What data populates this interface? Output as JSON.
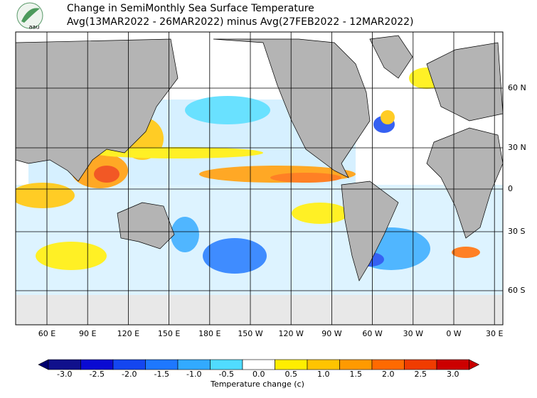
{
  "header": {
    "logo_text": "aau",
    "title": "Change in SemiMonthly Sea Surface Temperature",
    "subtitle": "Avg(13MAR2022 - 26MAR2022) minus Avg(27FEB2022 - 12MAR2022)"
  },
  "map": {
    "longitude_labels": [
      "60 E",
      "90 E",
      "120 E",
      "150 E",
      "180 E",
      "150 W",
      "120 W",
      "90 W",
      "60 W",
      "30 W",
      "0 W",
      "30 E"
    ],
    "latitude_labels": [
      "60 N",
      "30 N",
      "0",
      "30 S",
      "60 S"
    ]
  },
  "colorbar": {
    "ticks": [
      {
        "value": -3,
        "label": "-3.0"
      },
      {
        "value": -2.5,
        "label": "-2.5"
      },
      {
        "value": -2,
        "label": "-2.0"
      },
      {
        "value": -1.5,
        "label": "-1.5"
      },
      {
        "value": -1,
        "label": "-1.0"
      },
      {
        "value": -0.5,
        "label": "-0.5"
      },
      {
        "value": 0,
        "label": "0.0"
      },
      {
        "value": 0.5,
        "label": "0.5"
      },
      {
        "value": 1,
        "label": "1.0"
      },
      {
        "value": 1.5,
        "label": "1.5"
      },
      {
        "value": 2,
        "label": "2.0"
      },
      {
        "value": 2.5,
        "label": "2.5"
      },
      {
        "value": 3,
        "label": "3.0"
      }
    ],
    "colors": [
      "#10108c",
      "#0a0ad2",
      "#1446f0",
      "#1e78ff",
      "#32aaff",
      "#50dcff",
      "#ffffff",
      "#ffee00",
      "#ffc400",
      "#ff9a00",
      "#ff6a00",
      "#f03c00",
      "#cc0000"
    ],
    "under_color": "#000070",
    "over_color": "#c80000",
    "label": "Temperature change  (c)"
  }
}
